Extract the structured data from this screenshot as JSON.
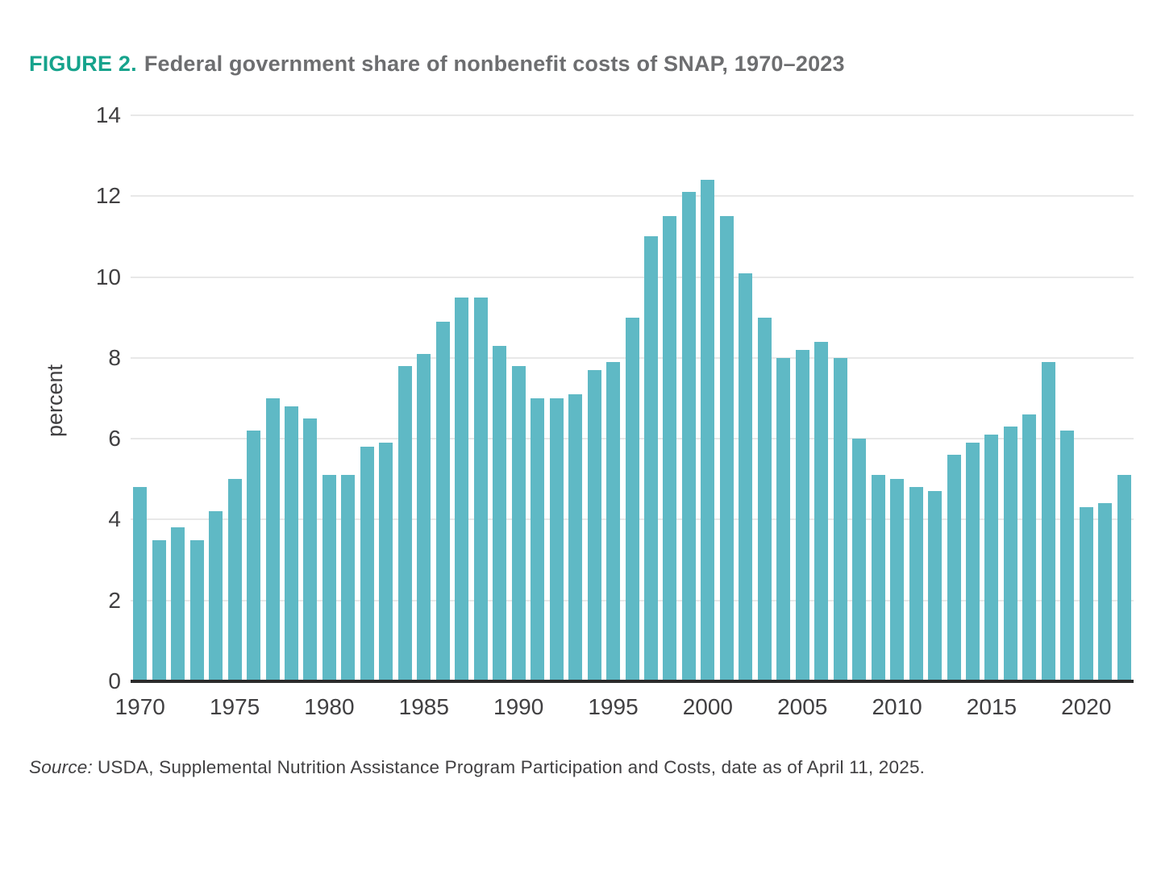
{
  "figure": {
    "label": "FIGURE 2.",
    "title": "Federal government share of nonbenefit costs of SNAP, 1970–2023"
  },
  "source_note": {
    "prefix": "Source:",
    "text": "USDA, Supplemental Nutrition Assistance Program Participation and Costs, date as of April 11, 2025."
  },
  "colors": {
    "bar": "#5fb9c5",
    "figure_label": "#16a38c",
    "title_text": "#6d6e70",
    "axis_text": "#414042",
    "gridline": "#e8e8e8",
    "axis_line": "#2b2b2b"
  },
  "chart_data": {
    "type": "bar",
    "title": "Federal government share of nonbenefit costs of SNAP, 1970–2023",
    "xlabel": "",
    "ylabel": "percent",
    "ylim": [
      0,
      14
    ],
    "yticks": [
      0,
      2,
      4,
      6,
      8,
      10,
      12,
      14
    ],
    "xtick_years": [
      1970,
      1975,
      1980,
      1985,
      1990,
      1995,
      2000,
      2005,
      2010,
      2015,
      2020
    ],
    "grid": true,
    "legend": "none",
    "categories": [
      1970,
      1971,
      1972,
      1973,
      1974,
      1975,
      1976,
      1977,
      1978,
      1979,
      1980,
      1981,
      1982,
      1983,
      1984,
      1985,
      1986,
      1987,
      1988,
      1989,
      1990,
      1991,
      1992,
      1993,
      1994,
      1995,
      1996,
      1997,
      1998,
      1999,
      2000,
      2001,
      2002,
      2003,
      2004,
      2005,
      2006,
      2007,
      2008,
      2009,
      2010,
      2011,
      2012,
      2013,
      2014,
      2015,
      2016,
      2017,
      2018,
      2019,
      2020,
      2021,
      2022
    ],
    "values": [
      4.8,
      3.5,
      3.8,
      3.5,
      4.2,
      5.0,
      6.2,
      7.0,
      6.8,
      6.5,
      5.1,
      5.1,
      5.8,
      5.9,
      7.8,
      8.1,
      8.9,
      9.5,
      9.5,
      8.3,
      7.8,
      7.0,
      7.0,
      7.1,
      7.7,
      7.9,
      9.0,
      11.0,
      11.5,
      12.1,
      12.4,
      11.5,
      10.1,
      9.0,
      8.0,
      8.2,
      8.4,
      8.0,
      6.0,
      5.1,
      5.0,
      4.8,
      4.7,
      5.6,
      5.9,
      6.1,
      6.3,
      6.6,
      7.9,
      6.2,
      4.3,
      4.4,
      5.1
    ]
  }
}
